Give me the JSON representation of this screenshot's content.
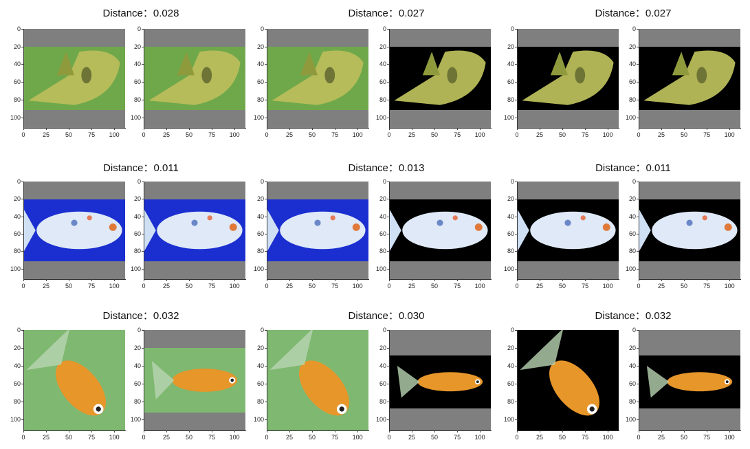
{
  "titles": [
    {
      "label": "Distance：",
      "value": "0.028"
    },
    {
      "label": "Distance：",
      "value": "0.027"
    },
    {
      "label": "Distance：",
      "value": "0.027"
    },
    {
      "label": "Distance：",
      "value": "0.011"
    },
    {
      "label": "Distance：",
      "value": "0.013"
    },
    {
      "label": "Distance：",
      "value": "0.011"
    },
    {
      "label": "Distance：",
      "value": "0.032"
    },
    {
      "label": "Distance：",
      "value": "0.030"
    },
    {
      "label": "Distance：",
      "value": "0.032"
    }
  ],
  "axes": {
    "y_ticks": [
      "0",
      "20",
      "40",
      "60",
      "80",
      "100"
    ],
    "x_ticks": [
      "0",
      "25",
      "50",
      "75",
      "100"
    ]
  },
  "fish_kinds": [
    "pufferfish",
    "koi",
    "goldfish"
  ],
  "colors": {
    "padding_gray": "#7f7f7f",
    "green_bg": "#6fa84a",
    "blue_bg": "#1b2fd0",
    "leaf_bg": "#7fb870",
    "black_bg": "#000000",
    "puffer": "#b8bd5a",
    "koi": "#dfe9f7",
    "goldfish": "#e7962a"
  }
}
